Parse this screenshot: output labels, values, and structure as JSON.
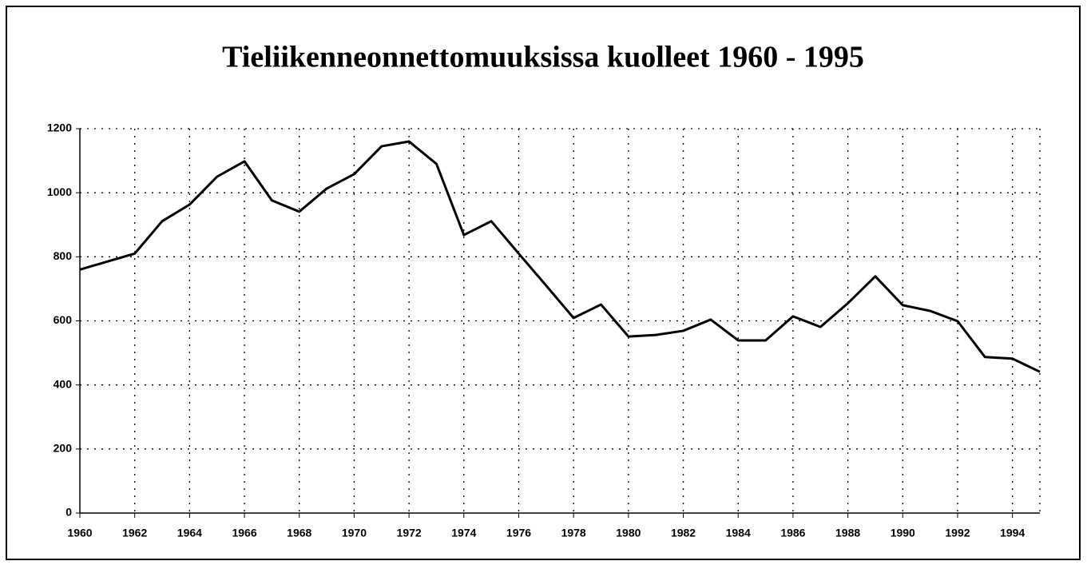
{
  "chart_data": {
    "type": "line",
    "title": "Tieliikenneonnettomuuksissa kuolleet 1960 - 1995",
    "x": [
      1960,
      1961,
      1962,
      1963,
      1964,
      1965,
      1966,
      1967,
      1968,
      1969,
      1970,
      1971,
      1972,
      1973,
      1974,
      1975,
      1976,
      1977,
      1978,
      1979,
      1980,
      1981,
      1982,
      1983,
      1984,
      1985,
      1986,
      1987,
      1988,
      1989,
      1990,
      1991,
      1992,
      1993,
      1994,
      1995
    ],
    "series": [
      {
        "color": "#000000",
        "values": [
          760,
          785,
          810,
          911,
          963,
          1050,
          1098,
          976,
          941,
          1013,
          1058,
          1145,
          1160,
          1090,
          868,
          911,
          810,
          710,
          609,
          651,
          551,
          556,
          569,
          604,
          539,
          539,
          614,
          581,
          655,
          739,
          649,
          631,
          599,
          487,
          482,
          441
        ]
      }
    ],
    "xlim": [
      1960,
      1995
    ],
    "xticks": [
      1960,
      1962,
      1964,
      1966,
      1968,
      1970,
      1972,
      1974,
      1976,
      1978,
      1980,
      1982,
      1984,
      1986,
      1988,
      1990,
      1992,
      1994
    ],
    "ylim": [
      0,
      1200
    ],
    "yticks": [
      0,
      200,
      400,
      600,
      800,
      1000,
      1200
    ],
    "grid": true
  }
}
